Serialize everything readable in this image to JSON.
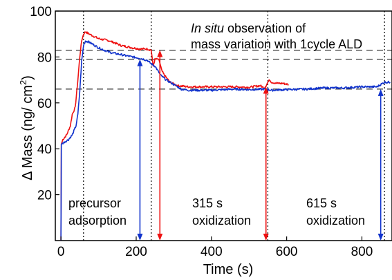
{
  "chart_data": {
    "type": "line",
    "xlabel": "Time (s)",
    "ylabel_main": "Δ Mass (ng/ cm",
    "ylabel_sup": "2",
    "ylabel_close": ")",
    "xlim": [
      -15,
      880
    ],
    "ylim": [
      0,
      100
    ],
    "xticks": [
      0,
      200,
      400,
      600,
      800
    ],
    "yticks": [
      20,
      40,
      60,
      80,
      100
    ],
    "series": [
      {
        "color": "#ee1111",
        "points": [
          [
            0,
            0
          ],
          [
            1,
            42
          ],
          [
            5,
            44
          ],
          [
            15,
            46
          ],
          [
            25,
            50
          ],
          [
            30,
            55
          ],
          [
            38,
            58
          ],
          [
            45,
            70
          ],
          [
            50,
            80
          ],
          [
            55,
            87
          ],
          [
            60,
            90
          ],
          [
            65,
            91
          ],
          [
            75,
            90
          ],
          [
            100,
            88
          ],
          [
            130,
            87
          ],
          [
            160,
            85
          ],
          [
            190,
            84
          ],
          [
            210,
            83.5
          ],
          [
            230,
            83.5
          ],
          [
            240,
            83
          ],
          [
            245,
            76
          ],
          [
            250,
            79
          ],
          [
            258,
            79
          ],
          [
            262,
            78
          ],
          [
            268,
            74
          ],
          [
            275,
            72
          ],
          [
            290,
            69
          ],
          [
            310,
            67.5
          ],
          [
            340,
            67
          ],
          [
            400,
            67
          ],
          [
            460,
            67
          ],
          [
            500,
            66.8
          ],
          [
            530,
            67.5
          ],
          [
            540,
            66.5
          ],
          [
            545,
            67.5
          ],
          [
            550,
            69
          ],
          [
            555,
            70
          ],
          [
            560,
            69
          ],
          [
            575,
            68.5
          ],
          [
            590,
            68.5
          ],
          [
            605,
            68
          ]
        ]
      },
      {
        "color": "#1133cc",
        "points": [
          [
            0,
            0
          ],
          [
            1,
            42
          ],
          [
            10,
            43
          ],
          [
            20,
            44
          ],
          [
            30,
            46
          ],
          [
            40,
            50
          ],
          [
            45,
            55
          ],
          [
            50,
            65
          ],
          [
            55,
            78
          ],
          [
            60,
            85
          ],
          [
            65,
            87
          ],
          [
            75,
            86.5
          ],
          [
            100,
            84
          ],
          [
            130,
            82
          ],
          [
            160,
            81
          ],
          [
            190,
            80
          ],
          [
            210,
            79.5
          ],
          [
            230,
            78.5
          ],
          [
            240,
            77
          ],
          [
            250,
            76
          ],
          [
            265,
            72
          ],
          [
            280,
            70
          ],
          [
            300,
            68
          ],
          [
            320,
            66
          ],
          [
            340,
            65.5
          ],
          [
            400,
            65.5
          ],
          [
            460,
            66
          ],
          [
            500,
            65.8
          ],
          [
            545,
            66
          ],
          [
            560,
            65.5
          ],
          [
            600,
            65.8
          ],
          [
            650,
            66
          ],
          [
            700,
            66.5
          ],
          [
            750,
            66.5
          ],
          [
            800,
            67
          ],
          [
            840,
            67
          ],
          [
            850,
            68
          ],
          [
            860,
            69
          ],
          [
            875,
            69
          ]
        ]
      }
    ],
    "vlines_dotted": [
      60,
      240,
      550,
      860
    ],
    "hlines_dashed": [
      83,
      79,
      66
    ],
    "arrows": [
      {
        "x": 210,
        "y_top": 79,
        "color": "#1133cc"
      },
      {
        "x": 263,
        "y_top": 83,
        "color": "#ee1111"
      },
      {
        "x": 545,
        "y_top": 67,
        "color": "#ee1111"
      },
      {
        "x": 850,
        "y_top": 66,
        "color": "#1133cc"
      }
    ],
    "annotations": {
      "title_italic": "In situ",
      "title_rest": " observation of",
      "title_line2": "mass variation with 1cycle ALD",
      "label_precursor_1": "precursor",
      "label_precursor_2": "adsorption",
      "label_315_1": "315 s",
      "label_315_2": "oxidization",
      "label_615_1": "615 s",
      "label_615_2": "oxidization"
    }
  }
}
